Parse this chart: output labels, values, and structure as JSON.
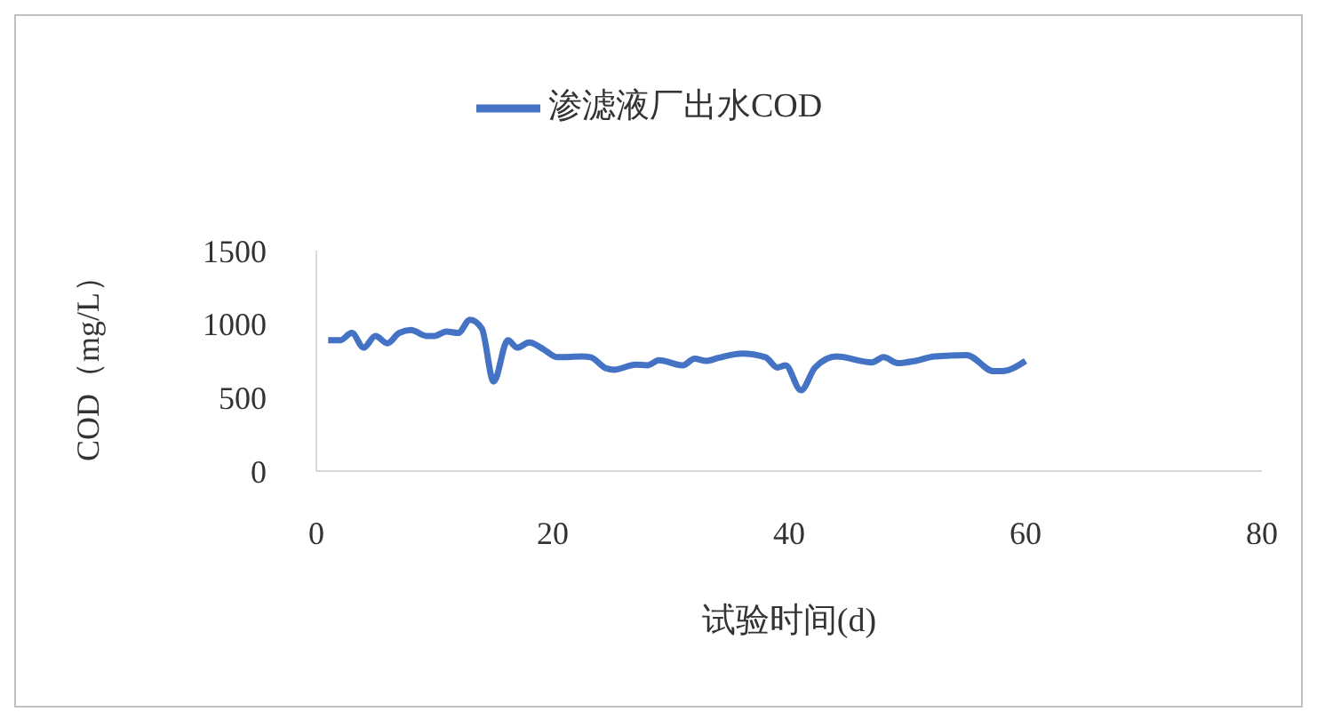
{
  "chart_data": {
    "type": "line",
    "xlabel": "试验时间(d)",
    "ylabel": "COD（mg/L）",
    "legend": "top",
    "grid": false,
    "marker": "none",
    "line_style": "solid",
    "xlim": [
      0,
      80
    ],
    "xticks": [
      0,
      20,
      40,
      60,
      80
    ],
    "ylim": [
      0,
      1500
    ],
    "yticks": [
      0,
      500,
      1000,
      1500
    ],
    "series": [
      {
        "name": "渗滤液厂出水COD",
        "color": "#4472c4",
        "x": [
          1,
          2,
          3,
          4,
          5,
          6,
          7,
          8,
          9.3,
          10,
          11,
          12,
          13,
          14,
          15,
          16.2,
          17,
          18,
          19.2,
          20.4,
          22.5,
          23.2,
          24.5,
          25.2,
          27,
          28,
          29,
          31,
          32,
          33,
          34,
          36,
          38,
          39,
          39.7,
          41,
          42.2,
          44,
          47,
          48,
          49.2,
          50.7,
          52.3,
          55,
          57.3,
          58,
          60
        ],
        "values": [
          890,
          890,
          940,
          840,
          920,
          870,
          940,
          960,
          920,
          920,
          950,
          940,
          1030,
          970,
          610,
          890,
          840,
          875,
          830,
          775,
          780,
          775,
          700,
          690,
          725,
          720,
          755,
          720,
          765,
          750,
          770,
          800,
          775,
          705,
          720,
          550,
          705,
          780,
          740,
          775,
          735,
          750,
          780,
          790,
          680,
          680,
          750
        ]
      }
    ]
  }
}
